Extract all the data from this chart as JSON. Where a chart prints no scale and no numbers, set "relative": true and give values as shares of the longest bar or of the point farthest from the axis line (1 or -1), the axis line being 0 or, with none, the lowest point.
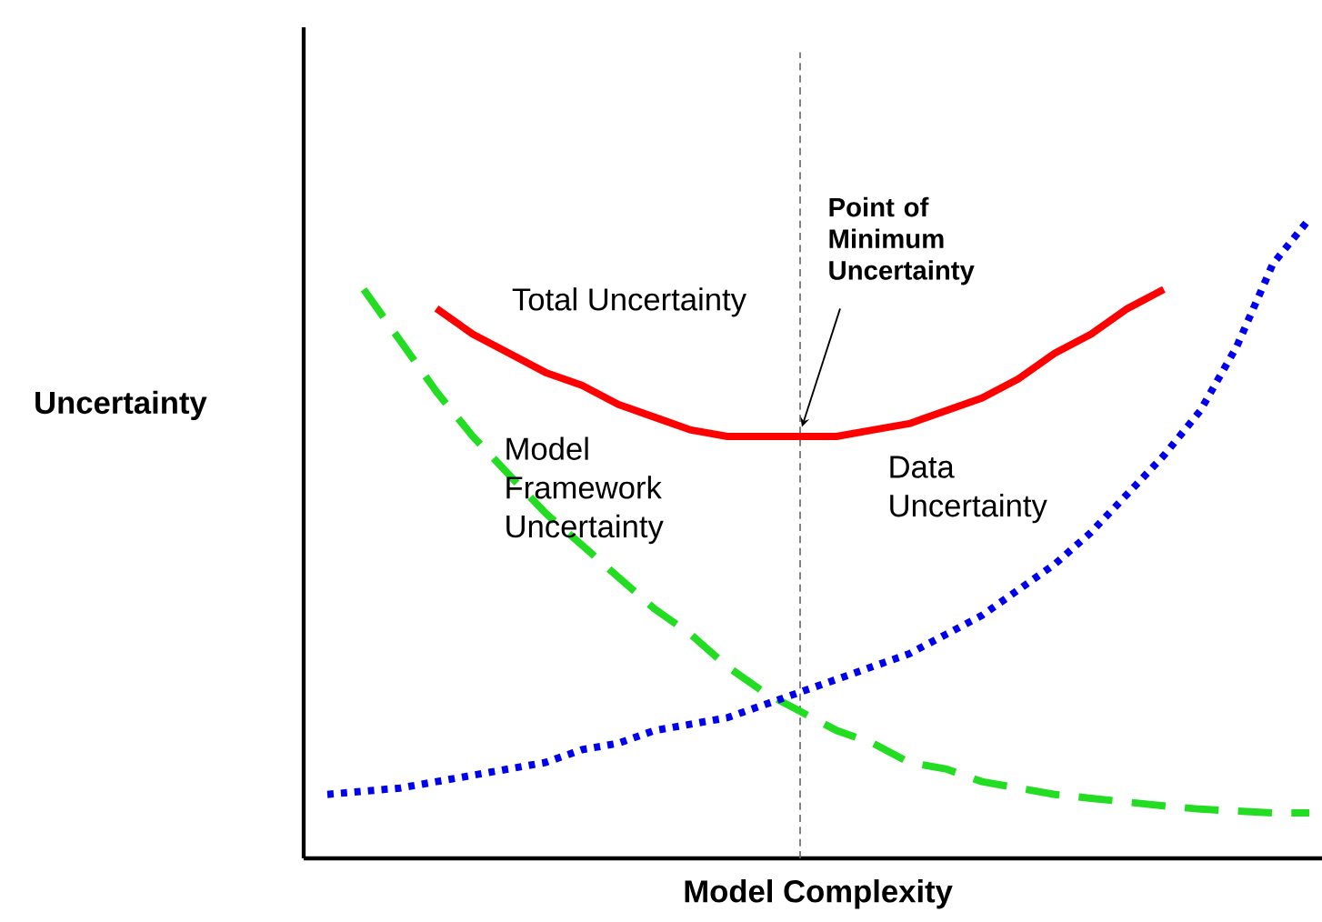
{
  "chart_data": {
    "type": "line",
    "relative": true,
    "xlabel": "Model Complexity",
    "ylabel": "Uncertainty",
    "annotations": [
      "Point of Minimum Uncertainty"
    ],
    "categories": [
      null,
      null,
      null,
      null,
      null,
      null,
      null,
      null,
      null,
      null,
      null,
      null,
      null,
      null,
      null,
      null,
      null,
      null,
      null,
      null,
      null,
      null,
      null,
      null,
      null,
      null,
      null,
      null
    ],
    "series": [
      {
        "name": "Total Uncertainty",
        "color": "#ff0000",
        "line_style": "solid",
        "values": [
          null,
          null,
          null,
          0.86,
          0.82,
          0.79,
          0.76,
          0.74,
          0.71,
          0.69,
          0.67,
          0.66,
          0.66,
          0.66,
          0.66,
          0.67,
          0.68,
          0.7,
          0.72,
          0.75,
          0.79,
          0.82,
          0.86,
          0.89,
          null,
          null,
          null,
          null
        ]
      },
      {
        "name": "Model Framework Uncertainty",
        "color": "#22dd22",
        "line_style": "dashed",
        "values": [
          null,
          0.89,
          0.81,
          0.73,
          0.66,
          0.6,
          0.54,
          0.49,
          0.44,
          0.39,
          0.35,
          0.3,
          0.26,
          0.23,
          0.2,
          0.18,
          0.15,
          0.14,
          0.12,
          0.11,
          0.1,
          0.094,
          0.088,
          0.082,
          0.077,
          0.074,
          0.071,
          0.071
        ]
      },
      {
        "name": "Data Uncertainty",
        "color": "#0000ee",
        "line_style": "dotted",
        "values": [
          0.1,
          0.105,
          0.11,
          0.12,
          0.13,
          0.14,
          0.15,
          0.17,
          0.18,
          0.2,
          0.21,
          0.22,
          0.24,
          0.26,
          0.28,
          0.3,
          0.32,
          0.35,
          0.38,
          0.42,
          0.46,
          0.51,
          0.57,
          0.63,
          0.7,
          0.8,
          0.93,
          1.0
        ]
      }
    ]
  }
}
